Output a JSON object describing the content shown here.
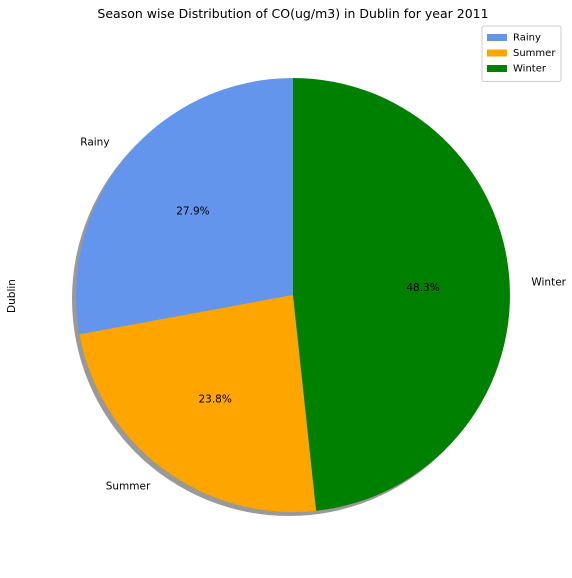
{
  "chart_data": {
    "type": "pie",
    "title": "Season wise Distribution of CO(ug/m3) in Dublin for year 2011",
    "ylabel": "Dublin",
    "categories": [
      "Rainy",
      "Summer",
      "Winter"
    ],
    "values": [
      27.9,
      23.8,
      48.3
    ],
    "value_labels": [
      "27.9%",
      "23.8%",
      "48.3%"
    ],
    "colors": [
      "#6495ED",
      "#FFA500",
      "#008000"
    ],
    "start_angle_deg": 90,
    "direction": "counterclockwise",
    "shadow": true,
    "legend": {
      "placement": "top-right",
      "entries": [
        "Rainy",
        "Summer",
        "Winter"
      ]
    }
  }
}
